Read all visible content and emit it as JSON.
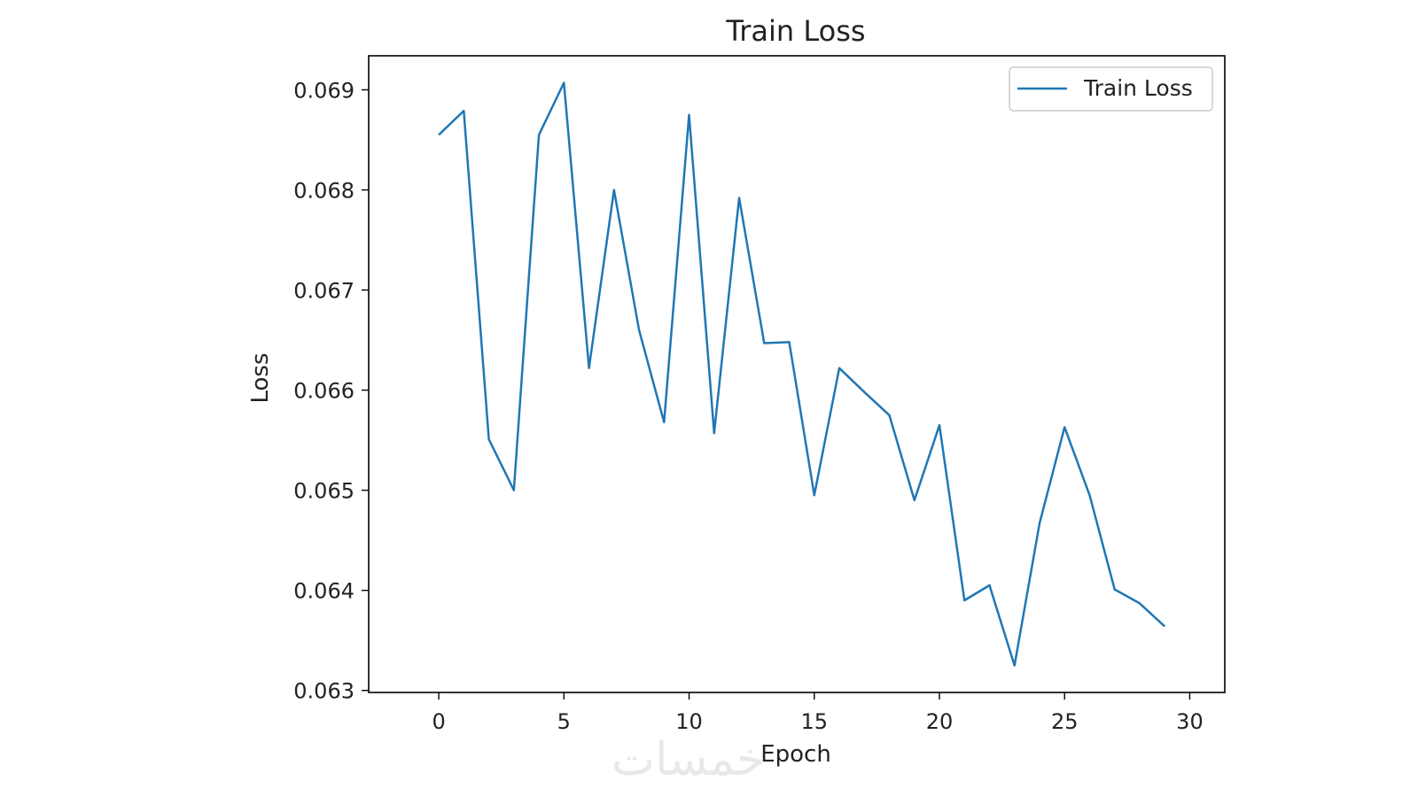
{
  "chart_data": {
    "type": "line",
    "title": "Train Loss",
    "xlabel": "Epoch",
    "ylabel": "Loss",
    "xlim": [
      -2.8,
      31.4
    ],
    "ylim": [
      0.06298,
      0.06934
    ],
    "xticks": [
      0,
      5,
      10,
      15,
      20,
      25,
      30
    ],
    "xtick_labels": [
      "0",
      "5",
      "10",
      "15",
      "20",
      "25",
      "30"
    ],
    "yticks": [
      0.063,
      0.064,
      0.065,
      0.066,
      0.067,
      0.068,
      0.069
    ],
    "ytick_labels": [
      "0.063",
      "0.064",
      "0.065",
      "0.066",
      "0.067",
      "0.068",
      "0.069"
    ],
    "grid": false,
    "legend_position": "upper right",
    "series": [
      {
        "name": "Train Loss",
        "color": "#1f77b4",
        "x": [
          0,
          1,
          2,
          3,
          4,
          5,
          6,
          7,
          8,
          9,
          10,
          11,
          12,
          13,
          14,
          15,
          16,
          17,
          18,
          19,
          20,
          21,
          22,
          23,
          24,
          25,
          26,
          27,
          28,
          29
        ],
        "y": [
          0.06855,
          0.06879,
          0.06551,
          0.065,
          0.06855,
          0.06907,
          0.06622,
          0.068,
          0.0666,
          0.06568,
          0.06875,
          0.06557,
          0.06792,
          0.06647,
          0.06648,
          0.06495,
          0.06622,
          0.06598,
          0.06575,
          0.0649,
          0.06565,
          0.0639,
          0.06405,
          0.06325,
          0.06467,
          0.06563,
          0.06495,
          0.06401,
          0.06387,
          0.06364
        ]
      }
    ]
  },
  "watermark": "خمسات"
}
